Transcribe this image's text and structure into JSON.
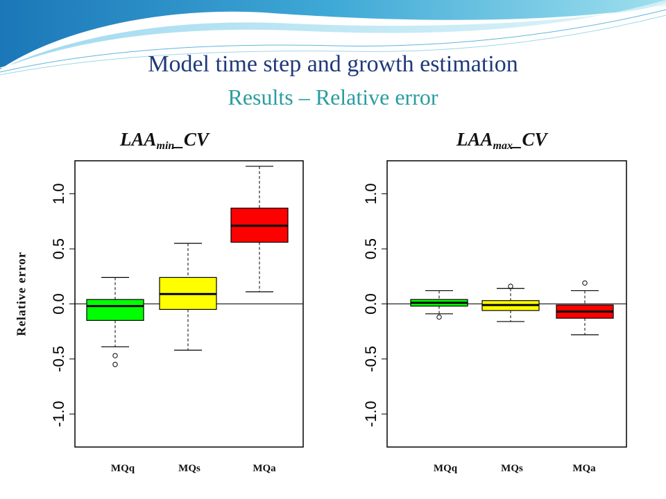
{
  "header": {
    "title": "Model time step and growth estimation",
    "subtitle": "Results – Relative error"
  },
  "chart_data": [
    {
      "type": "boxplot",
      "title": {
        "main": "LAA",
        "sub": "min",
        "suffix": "_CV"
      },
      "ylabel": "Relative error",
      "ylim": [
        -1.3,
        1.3
      ],
      "yticks": [
        -1.0,
        -0.5,
        0.0,
        0.5,
        1.0
      ],
      "tick_labels": [
        "-1.0",
        "-0.5",
        "0.0",
        "0.5",
        "1.0"
      ],
      "reference_line": 0,
      "categories": [
        "MQq",
        "MQs",
        "MQa"
      ],
      "boxes": [
        {
          "name": "MQq",
          "color": "#00ff00",
          "min": -0.39,
          "q1": -0.15,
          "median": -0.02,
          "q3": 0.04,
          "max": 0.24,
          "outliers": [
            -0.47,
            -0.55
          ]
        },
        {
          "name": "MQs",
          "color": "#ffff00",
          "min": -0.42,
          "q1": -0.05,
          "median": 0.09,
          "q3": 0.24,
          "max": 0.55,
          "outliers": []
        },
        {
          "name": "MQa",
          "color": "#ff0000",
          "min": 0.11,
          "q1": 0.56,
          "median": 0.71,
          "q3": 0.87,
          "max": 1.25,
          "outliers": []
        }
      ]
    },
    {
      "type": "boxplot",
      "title": {
        "main": "LAA",
        "sub": "max",
        "suffix": "_CV"
      },
      "ylim": [
        -1.3,
        1.3
      ],
      "yticks": [
        -1.0,
        -0.5,
        0.0,
        0.5,
        1.0
      ],
      "tick_labels": [
        "-1.0",
        "-0.5",
        "0.0",
        "0.5",
        "1.0"
      ],
      "reference_line": 0,
      "categories": [
        "MQq",
        "MQs",
        "MQa"
      ],
      "boxes": [
        {
          "name": "MQq",
          "color": "#00ff00",
          "min": -0.09,
          "q1": -0.02,
          "median": 0.01,
          "q3": 0.04,
          "max": 0.12,
          "outliers": [
            -0.12
          ]
        },
        {
          "name": "MQs",
          "color": "#ffff00",
          "min": -0.16,
          "q1": -0.06,
          "median": -0.01,
          "q3": 0.03,
          "max": 0.14,
          "outliers": [
            0.16
          ]
        },
        {
          "name": "MQa",
          "color": "#ff0000",
          "min": -0.28,
          "q1": -0.13,
          "median": -0.07,
          "q3": -0.01,
          "max": 0.12,
          "outliers": [
            0.19
          ]
        }
      ]
    }
  ]
}
